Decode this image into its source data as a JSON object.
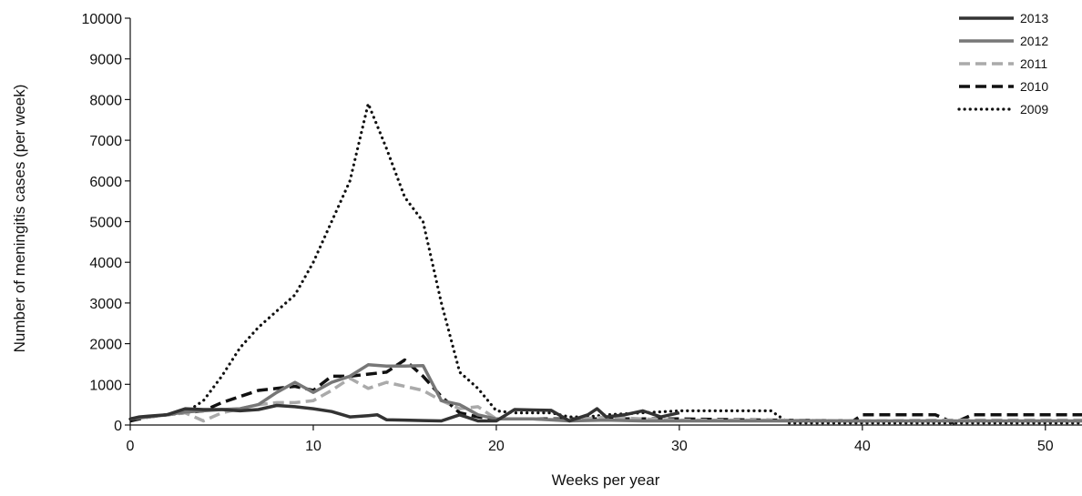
{
  "chart_data": {
    "type": "line",
    "title": "",
    "xlabel": "Weeks per year",
    "ylabel": "Number of meningitis cases (per week)",
    "xlim": [
      0,
      52
    ],
    "ylim": [
      0,
      10000
    ],
    "xticks": [
      0,
      10,
      20,
      30,
      40,
      50
    ],
    "yticks": [
      0,
      1000,
      2000,
      3000,
      4000,
      5000,
      6000,
      7000,
      8000,
      9000,
      10000
    ],
    "grid": false,
    "legend_position": "top-right",
    "series": [
      {
        "name": "2013",
        "color": "#333333",
        "style": "solid",
        "x": [
          0,
          0.5,
          1,
          2,
          3,
          4,
          5,
          6,
          7,
          8,
          9,
          10,
          11,
          12,
          13,
          13.5,
          14,
          15,
          16,
          17,
          18,
          19,
          20,
          21,
          22,
          23,
          24,
          25,
          25.5,
          26,
          27,
          28,
          29,
          30
        ],
        "y": [
          150,
          200,
          220,
          250,
          400,
          380,
          380,
          350,
          380,
          480,
          450,
          400,
          330,
          200,
          230,
          250,
          130,
          120,
          110,
          100,
          250,
          100,
          100,
          380,
          370,
          360,
          100,
          250,
          400,
          200,
          250,
          350,
          200,
          300
        ]
      },
      {
        "name": "2012",
        "color": "#777777",
        "style": "solid",
        "x": [
          0,
          1,
          2,
          3,
          4,
          5,
          6,
          7,
          8,
          9,
          10,
          11,
          12,
          13,
          14,
          15,
          16,
          17,
          18,
          19,
          20,
          22,
          24,
          26,
          28,
          30,
          35,
          40,
          45,
          50,
          52
        ],
        "y": [
          150,
          200,
          250,
          320,
          350,
          380,
          400,
          500,
          800,
          1050,
          800,
          1050,
          1200,
          1480,
          1450,
          1450,
          1460,
          600,
          500,
          250,
          150,
          150,
          100,
          120,
          100,
          100,
          100,
          100,
          100,
          100,
          100
        ]
      },
      {
        "name": "2011",
        "color": "#aaaaaa",
        "style": "dashed",
        "x": [
          0,
          1,
          2,
          3,
          4,
          5,
          6,
          7,
          8,
          9,
          10,
          11,
          12,
          13,
          14,
          15,
          16,
          17,
          18,
          19,
          20,
          22,
          24,
          26,
          28,
          30,
          35,
          40,
          45,
          50,
          52
        ],
        "y": [
          150,
          200,
          250,
          300,
          100,
          300,
          400,
          500,
          550,
          550,
          600,
          850,
          1150,
          900,
          1050,
          950,
          850,
          600,
          400,
          450,
          150,
          150,
          120,
          200,
          150,
          120,
          120,
          100,
          120,
          120,
          120
        ]
      },
      {
        "name": "2010",
        "color": "#111111",
        "style": "dashed",
        "x": [
          0,
          1,
          2,
          3,
          4,
          5,
          6,
          7,
          8,
          9,
          10,
          11,
          12,
          13,
          14,
          15,
          16,
          17,
          18,
          19,
          20,
          22,
          24,
          26,
          28,
          30,
          35,
          39.5,
          40,
          44,
          45,
          46,
          50,
          52
        ],
        "y": [
          100,
          200,
          250,
          300,
          350,
          550,
          700,
          850,
          900,
          950,
          850,
          1200,
          1200,
          1250,
          1300,
          1600,
          1200,
          700,
          300,
          200,
          150,
          150,
          150,
          150,
          150,
          150,
          120,
          100,
          250,
          250,
          50,
          250,
          250,
          250
        ]
      },
      {
        "name": "2009",
        "color": "#111111",
        "style": "dotted",
        "x": [
          0,
          1,
          2,
          3,
          4,
          5,
          6,
          7,
          8,
          9,
          10,
          11,
          12,
          13,
          14,
          15,
          16,
          17,
          18,
          19,
          20,
          21,
          22,
          23,
          24,
          25,
          26,
          28,
          30,
          32,
          35,
          36,
          38,
          40,
          45,
          50,
          52
        ],
        "y": [
          150,
          200,
          250,
          300,
          600,
          1200,
          1900,
          2400,
          2800,
          3200,
          4000,
          5000,
          6000,
          7900,
          6800,
          5600,
          5000,
          3000,
          1300,
          900,
          350,
          300,
          300,
          300,
          200,
          200,
          250,
          300,
          350,
          350,
          350,
          50,
          50,
          50,
          50,
          50,
          50
        ]
      }
    ]
  }
}
